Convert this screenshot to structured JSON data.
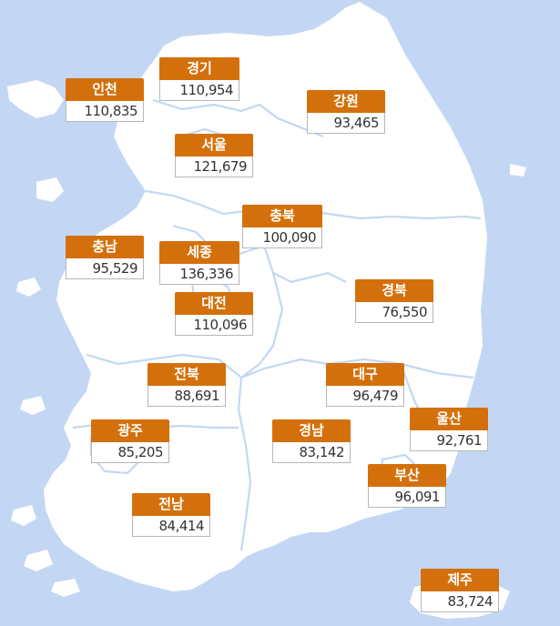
{
  "colors": {
    "sea": "#c3d7f4",
    "land": "#ffffff",
    "border": "#c3d7f4",
    "label_bg": "#d4700b",
    "label_text": "#ffffff"
  },
  "regions": [
    {
      "id": "incheon",
      "name": "인천",
      "value": "110,835"
    },
    {
      "id": "gyeonggi",
      "name": "경기",
      "value": "110,954"
    },
    {
      "id": "gangwon",
      "name": "강원",
      "value": "93,465"
    },
    {
      "id": "seoul",
      "name": "서울",
      "value": "121,679"
    },
    {
      "id": "chungbuk",
      "name": "충북",
      "value": "100,090"
    },
    {
      "id": "chungnam",
      "name": "충남",
      "value": "95,529"
    },
    {
      "id": "sejong",
      "name": "세종",
      "value": "136,336"
    },
    {
      "id": "gyeongbuk",
      "name": "경북",
      "value": "76,550"
    },
    {
      "id": "daejeon",
      "name": "대전",
      "value": "110,096"
    },
    {
      "id": "jeonbuk",
      "name": "전북",
      "value": "88,691"
    },
    {
      "id": "daegu",
      "name": "대구",
      "value": "96,479"
    },
    {
      "id": "ulsan",
      "name": "울산",
      "value": "92,761"
    },
    {
      "id": "gwangju",
      "name": "광주",
      "value": "85,205"
    },
    {
      "id": "gyeongnam",
      "name": "경남",
      "value": "83,142"
    },
    {
      "id": "busan",
      "name": "부산",
      "value": "96,091"
    },
    {
      "id": "jeonnam",
      "name": "전남",
      "value": "84,414"
    },
    {
      "id": "jeju",
      "name": "제주",
      "value": "83,724"
    }
  ]
}
